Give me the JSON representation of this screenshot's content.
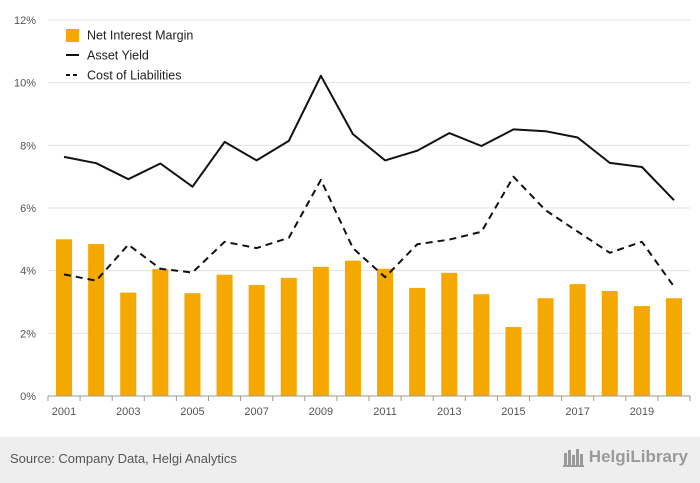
{
  "chart_data": {
    "type": "bar",
    "categories": [
      "2001",
      "2002",
      "2003",
      "2004",
      "2005",
      "2006",
      "2007",
      "2008",
      "2009",
      "2010",
      "2011",
      "2012",
      "2013",
      "2014",
      "2015",
      "2016",
      "2017",
      "2018",
      "2019",
      "2020"
    ],
    "x_tick_labels": [
      "2001",
      "2003",
      "2005",
      "2007",
      "2009",
      "2011",
      "2013",
      "2015",
      "2017",
      "2019"
    ],
    "y_tick_labels": [
      "0%",
      "2%",
      "4%",
      "6%",
      "8%",
      "10%",
      "12%"
    ],
    "ylim": [
      0,
      12
    ],
    "ytick_step": 2,
    "grid": true,
    "legend_position": "top-left",
    "series": [
      {
        "name": "Net Interest Margin",
        "type": "bar",
        "color": "#f5a800",
        "values": [
          5.0,
          4.85,
          3.3,
          4.05,
          3.28,
          3.87,
          3.54,
          3.77,
          4.12,
          4.32,
          4.06,
          3.45,
          3.93,
          3.25,
          2.2,
          3.12,
          3.57,
          3.35,
          2.87,
          3.12
        ]
      },
      {
        "name": "Asset Yield",
        "type": "line",
        "style": "solid",
        "color": "#111111",
        "values": [
          7.63,
          7.43,
          6.92,
          7.42,
          6.68,
          8.11,
          7.52,
          8.14,
          10.22,
          8.36,
          7.52,
          7.83,
          8.39,
          7.98,
          8.51,
          8.45,
          8.25,
          7.44,
          7.31,
          6.25
        ]
      },
      {
        "name": "Cost of Liabilities",
        "type": "line",
        "style": "dashed",
        "color": "#111111",
        "values": [
          3.88,
          3.68,
          4.83,
          4.06,
          3.94,
          4.92,
          4.72,
          5.05,
          6.9,
          4.72,
          3.79,
          4.84,
          4.99,
          5.24,
          7.0,
          5.93,
          5.25,
          4.57,
          4.92,
          3.49
        ]
      }
    ]
  },
  "footer": {
    "source": "Source: Company Data, Helgi Analytics",
    "brand": "HelgiLibrary"
  }
}
